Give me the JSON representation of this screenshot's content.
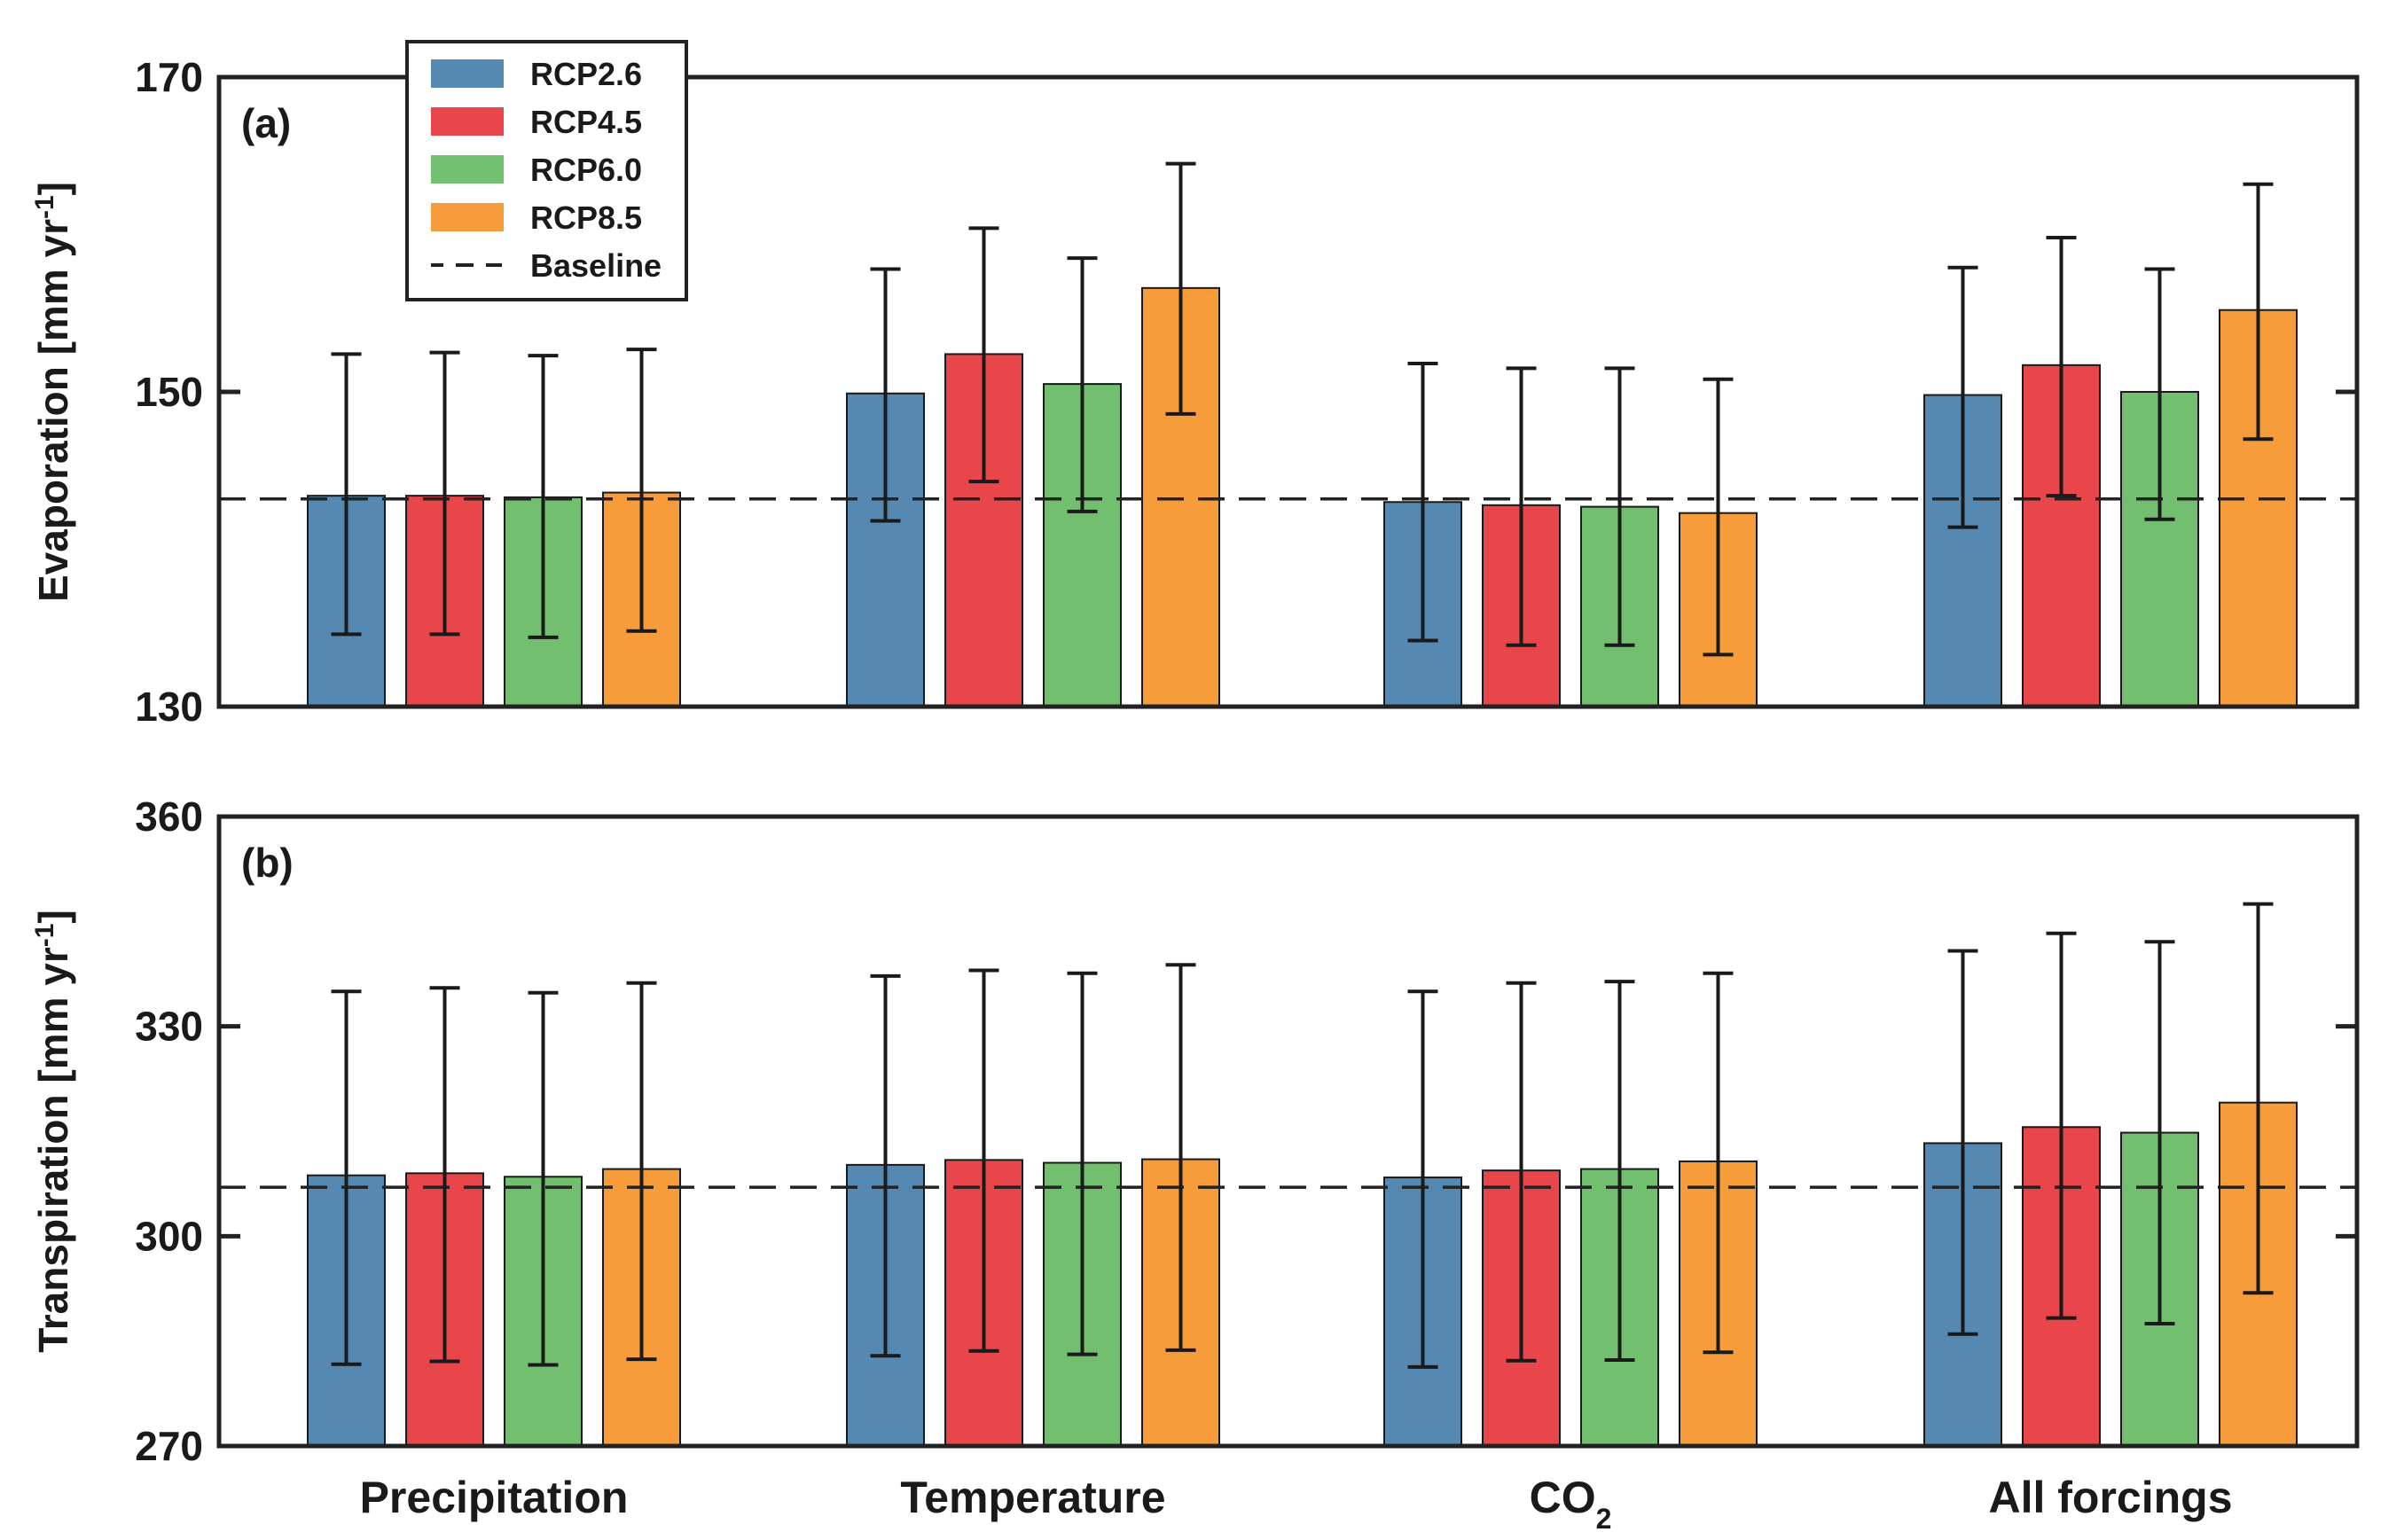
{
  "chart_data": [
    {
      "type": "bar",
      "panel": "(a)",
      "ylabel": "Evaporation [mm yr",
      "ylabel_sup": "-1",
      "ylabel_close": "]",
      "ylim": [
        130,
        170
      ],
      "yticks": [
        "130",
        "150",
        "170"
      ],
      "baseline": 143.2,
      "categories": [
        "Precipitation",
        "Temperature",
        "CO",
        "All forcings"
      ],
      "series": [
        {
          "name": "RCP2.6",
          "values": [
            143.4,
            149.9,
            143.0,
            149.8
          ],
          "err_low": [
            134.6,
            141.8,
            134.2,
            141.4
          ],
          "err_high": [
            152.4,
            157.8,
            151.8,
            157.9
          ]
        },
        {
          "name": "RCP4.5",
          "values": [
            143.4,
            152.4,
            142.8,
            151.7
          ],
          "err_low": [
            134.6,
            144.3,
            133.9,
            143.4
          ],
          "err_high": [
            152.5,
            160.4,
            151.5,
            159.8
          ]
        },
        {
          "name": "RCP6.0",
          "values": [
            143.3,
            150.5,
            142.7,
            150.0
          ],
          "err_low": [
            134.4,
            142.4,
            133.9,
            141.9
          ],
          "err_high": [
            152.3,
            158.5,
            151.5,
            157.8
          ]
        },
        {
          "name": "RCP8.5",
          "values": [
            143.6,
            156.6,
            142.3,
            155.2
          ],
          "err_low": [
            134.8,
            148.6,
            133.3,
            147.0
          ],
          "err_high": [
            152.7,
            164.5,
            150.8,
            163.2
          ]
        }
      ]
    },
    {
      "type": "bar",
      "panel": "(b)",
      "ylabel": "Transpiration [mm yr",
      "ylabel_sup": "-1",
      "ylabel_close": "]",
      "ylim": [
        270,
        360
      ],
      "yticks": [
        "270",
        "300",
        "330",
        "360"
      ],
      "baseline": 307.0,
      "categories": [
        "Precipitation",
        "Temperature",
        "CO",
        "All forcings"
      ],
      "series": [
        {
          "name": "RCP2.6",
          "values": [
            308.7,
            310.2,
            308.4,
            313.3
          ],
          "err_low": [
            281.7,
            282.9,
            281.3,
            286.0
          ],
          "err_high": [
            335.0,
            337.2,
            335.0,
            340.8
          ]
        },
        {
          "name": "RCP4.5",
          "values": [
            309.0,
            310.9,
            309.4,
            315.6
          ],
          "err_low": [
            282.1,
            283.6,
            282.2,
            288.3
          ],
          "err_high": [
            335.5,
            338.0,
            336.2,
            343.3
          ]
        },
        {
          "name": "RCP6.0",
          "values": [
            308.5,
            310.5,
            309.6,
            314.8
          ],
          "err_low": [
            281.6,
            283.1,
            282.3,
            287.5
          ],
          "err_high": [
            334.8,
            337.6,
            336.4,
            342.1
          ]
        },
        {
          "name": "RCP8.5",
          "values": [
            309.6,
            311.0,
            310.7,
            319.1
          ],
          "err_low": [
            282.4,
            283.7,
            283.4,
            291.9
          ],
          "err_high": [
            336.2,
            338.8,
            337.6,
            347.5
          ]
        }
      ]
    }
  ],
  "category_subscript": {
    "index": 2,
    "sub": "2"
  },
  "legend": {
    "items": [
      "RCP2.6",
      "RCP4.5",
      "RCP6.0",
      "RCP8.5",
      "Baseline"
    ],
    "placement": "top-left"
  },
  "colors": {
    "RCP2.6": "#5589b1",
    "RCP4.5": "#e8464a",
    "RCP6.0": "#72c06f",
    "RCP8.5": "#f69c3a",
    "axis": "#222222"
  }
}
